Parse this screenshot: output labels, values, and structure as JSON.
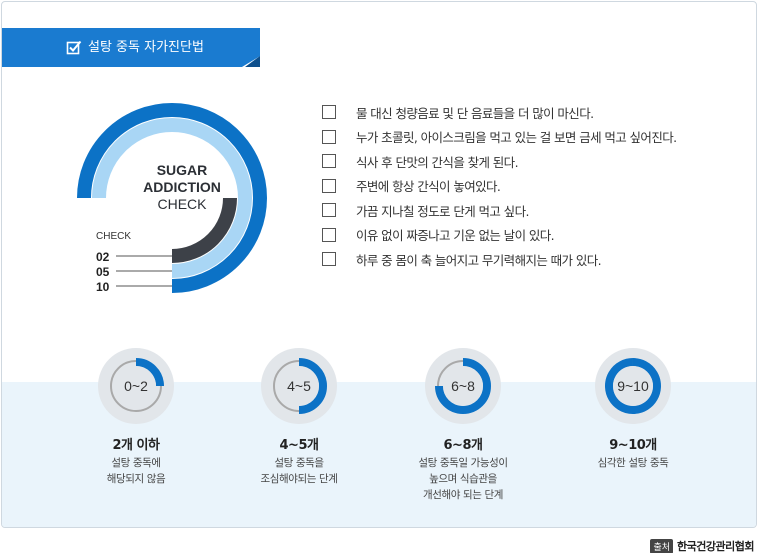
{
  "header": {
    "title": "설탕 중독 자가진단법",
    "icon": "checkbox-icon"
  },
  "chart": {
    "title_line1": "SUGAR",
    "title_line2": "ADDICTION",
    "title_line3": "CHECK",
    "check_label": "CHECK",
    "marks": [
      "02",
      "05",
      "10"
    ],
    "colors": {
      "outer": "#0c72c6",
      "middle": "#a9d6f5",
      "inner": "#3d4148"
    }
  },
  "checklist": [
    "물 대신 청량음료 및 단 음료들을 더 많이 마신다.",
    "누가 초콜릿, 아이스크림을 먹고 있는 걸 보면 금세 먹고 싶어진다.",
    "식사 후 단맛의 간식을 찾게 된다.",
    "주변에 항상 간식이 놓여있다.",
    "가끔 지나칠 정도로 단게 먹고 싶다.",
    "이유 없이 짜증나고 기운 없는 날이 있다.",
    "하루 중 몸이 축 늘어지고 무기력해지는 때가 있다."
  ],
  "levels": [
    {
      "range": "0~2",
      "title": "2개 이하",
      "desc": [
        "설탕 중독에",
        "해당되지 않음"
      ],
      "fraction": 0.25
    },
    {
      "range": "4~5",
      "title": "4~5개",
      "desc": [
        "설탕 중독을",
        "조심해야되는 단계"
      ],
      "fraction": 0.5
    },
    {
      "range": "6~8",
      "title": "6~8개",
      "desc": [
        "설탕 중독일 가능성이",
        "높으며 식습관을",
        "개선해야 되는 단계"
      ],
      "fraction": 0.75
    },
    {
      "range": "9~10",
      "title": "9~10개",
      "desc": [
        "심각한 설탕 중독"
      ],
      "fraction": 1.0
    }
  ],
  "source": {
    "tag": "출처",
    "org": "한국건강관리협회"
  },
  "colors": {
    "accent": "#1a7bd0",
    "band": "#eaf4fb",
    "gauge_track": "#a9a9a9",
    "gauge_fill": "#0c72c6"
  }
}
